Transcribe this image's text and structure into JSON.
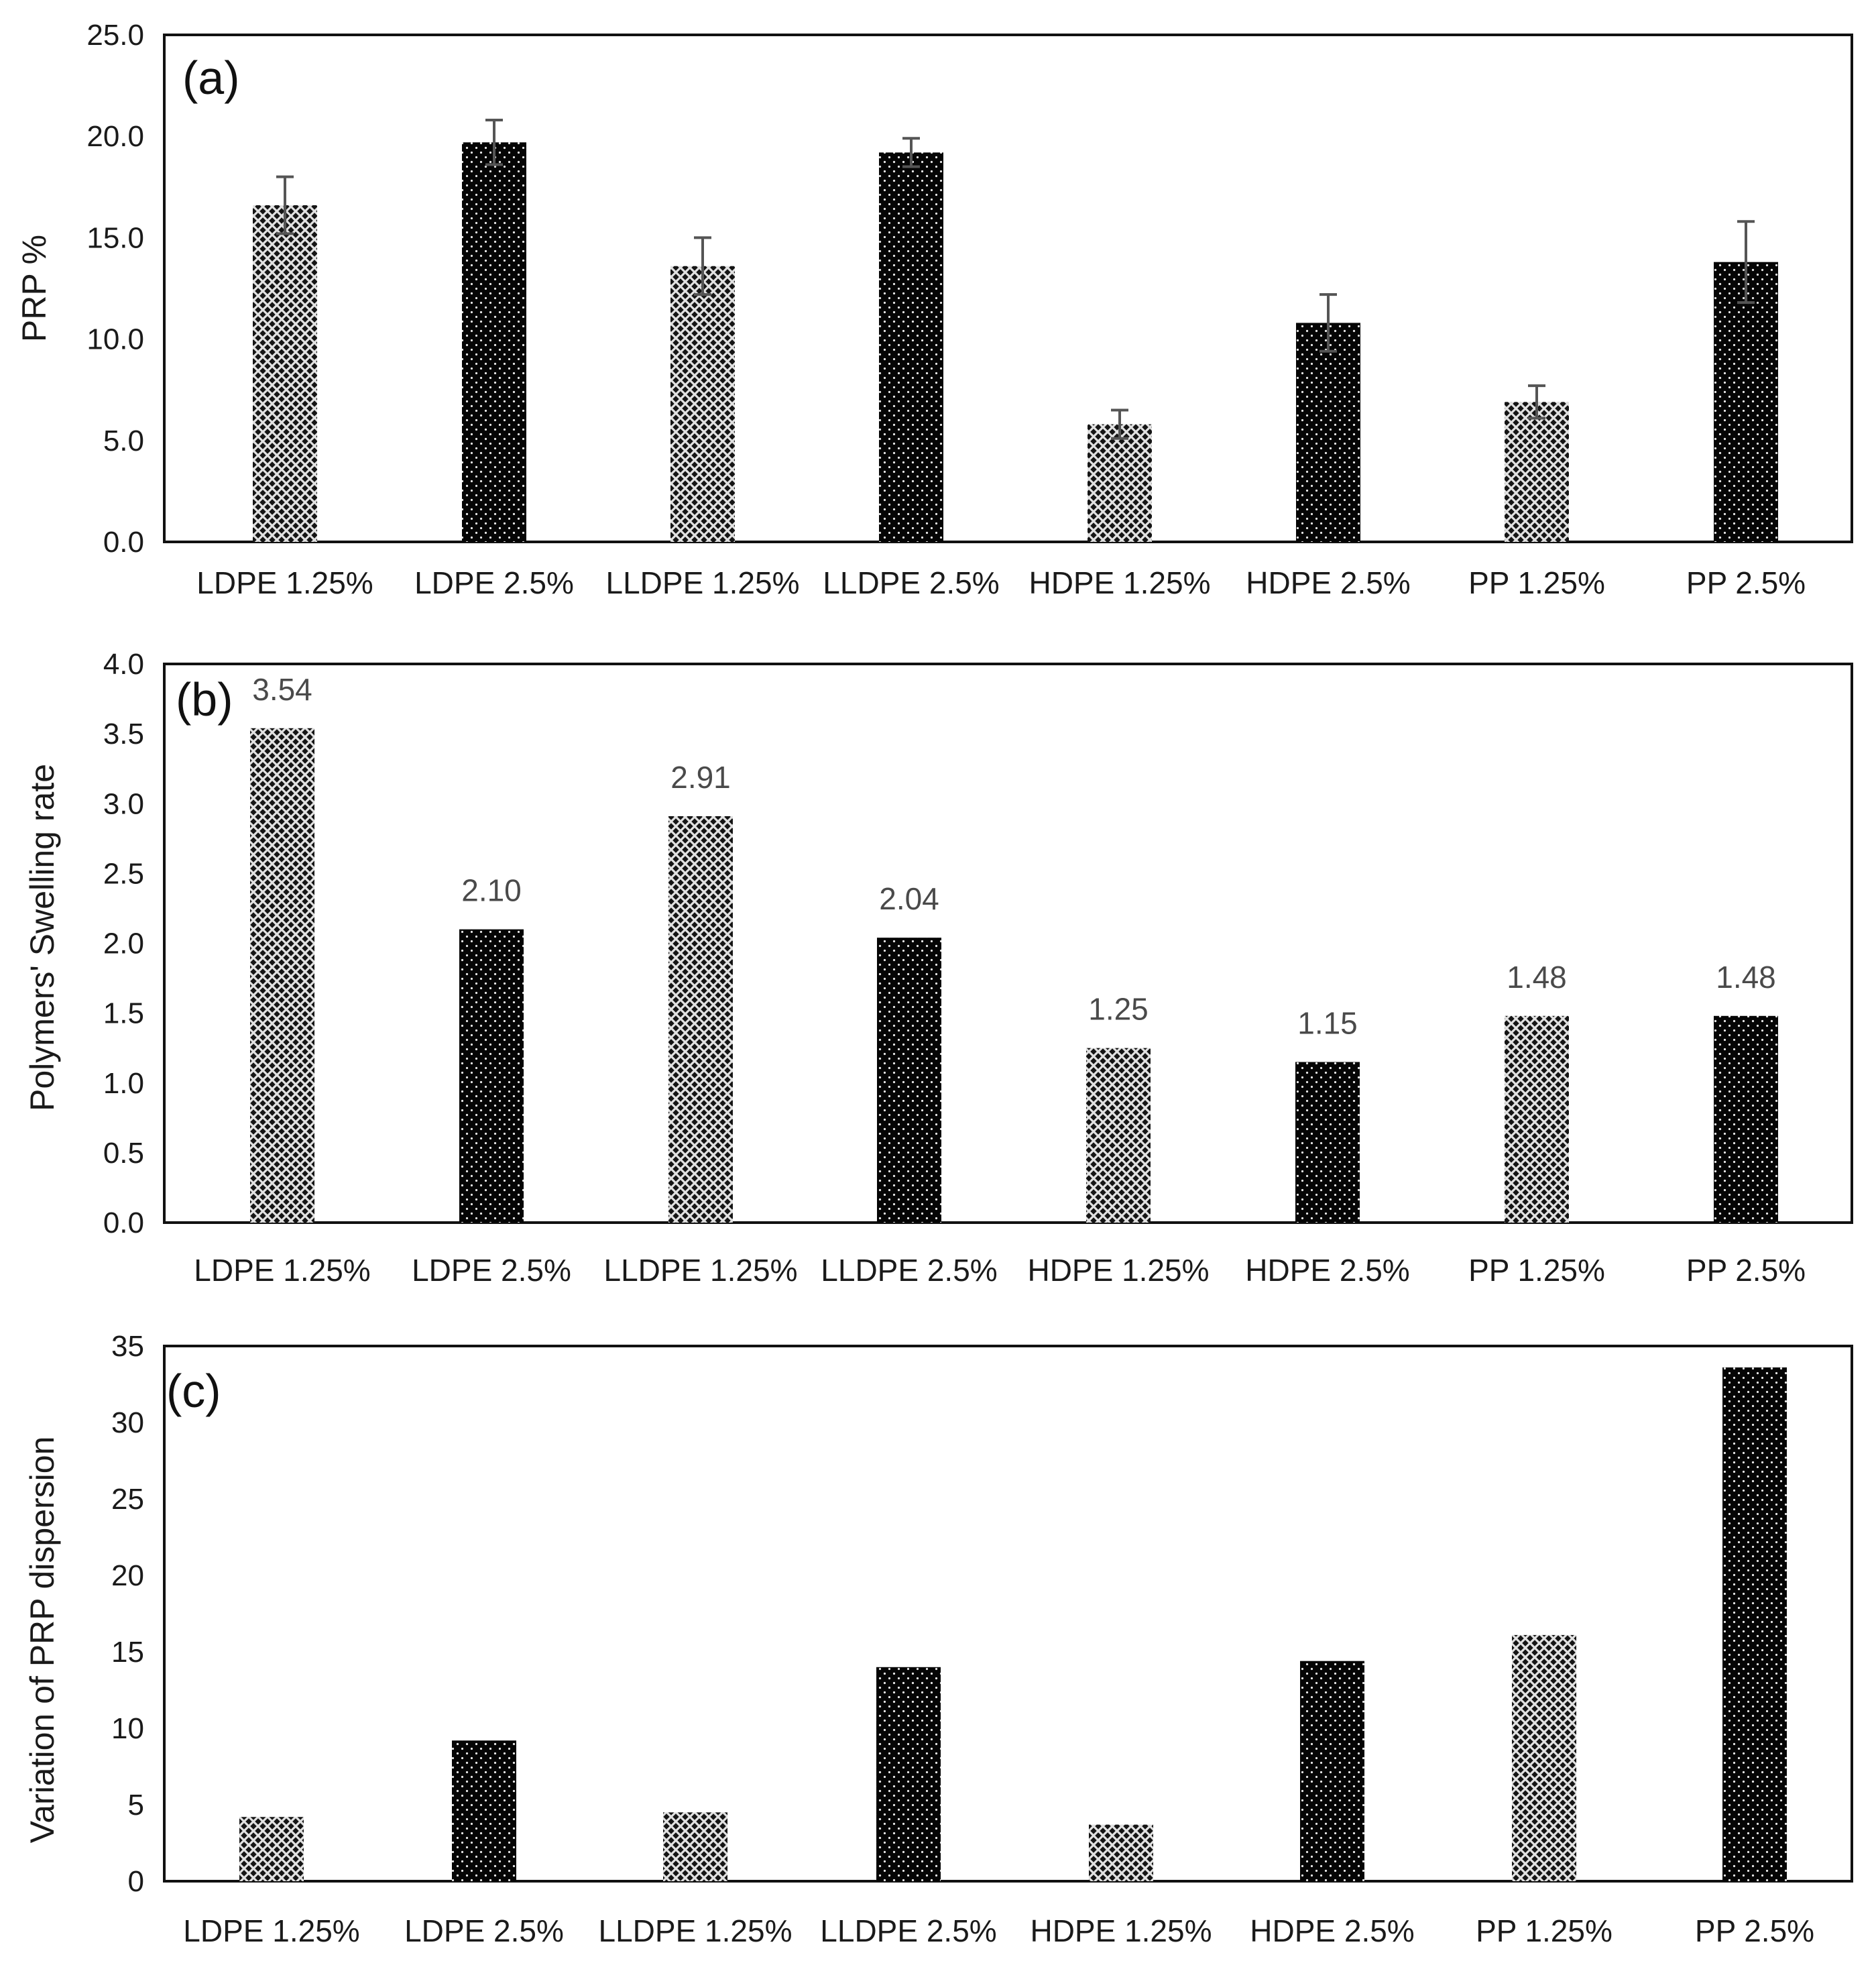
{
  "chart_data": [
    {
      "type": "bar",
      "panel": "(a)",
      "title": "",
      "xlabel": "",
      "ylabel": "PRP %",
      "ylim": [
        0,
        25
      ],
      "yticks": [
        "0.0",
        "5.0",
        "10.0",
        "15.0",
        "20.0",
        "25.0"
      ],
      "categories": [
        "LDPE 1.25%",
        "LDPE 2.5%",
        "LLDPE 1.25%",
        "LLDPE 2.5%",
        "HDPE 1.25%",
        "HDPE 2.5%",
        "PP 1.25%",
        "PP 2.5%"
      ],
      "values": [
        16.6,
        19.7,
        13.6,
        19.2,
        5.8,
        10.8,
        6.9,
        13.8
      ],
      "errors": [
        1.4,
        1.1,
        1.4,
        0.7,
        0.7,
        1.4,
        0.8,
        2.0
      ],
      "grid": false
    },
    {
      "type": "bar",
      "panel": "(b)",
      "title": "",
      "xlabel": "",
      "ylabel": "Polymers' Swelling rate",
      "ylim": [
        0,
        4
      ],
      "yticks": [
        "0.0",
        "0.5",
        "1.0",
        "1.5",
        "2.0",
        "2.5",
        "3.0",
        "3.5",
        "4.0"
      ],
      "categories": [
        "LDPE 1.25%",
        "LDPE 2.5%",
        "LLDPE 1.25%",
        "LLDPE 2.5%",
        "HDPE 1.25%",
        "HDPE 2.5%",
        "PP 1.25%",
        "PP 2.5%"
      ],
      "values": [
        3.54,
        2.1,
        2.91,
        2.04,
        1.25,
        1.15,
        1.48,
        1.48
      ],
      "data_labels": [
        "3.54",
        "2.10",
        "2.91",
        "2.04",
        "1.25",
        "1.15",
        "1.48",
        "1.48"
      ],
      "grid": false
    },
    {
      "type": "bar",
      "panel": "(c)",
      "title": "",
      "xlabel": "",
      "ylabel": "Variation of PRP dispersion",
      "ylim": [
        0,
        35
      ],
      "yticks": [
        "0",
        "5",
        "10",
        "15",
        "20",
        "25",
        "30",
        "35"
      ],
      "categories": [
        "LDPE 1.25%",
        "LDPE 2.5%",
        "LLDPE 1.25%",
        "LLDPE 2.5%",
        "HDPE 1.25%",
        "HDPE 2.5%",
        "PP 1.25%",
        "PP 2.5%"
      ],
      "values": [
        4.2,
        9.2,
        4.5,
        14.0,
        3.7,
        14.4,
        16.1,
        33.6
      ],
      "grid": false
    }
  ],
  "colors": {
    "frame": "#111111",
    "text": "#1a1a1a",
    "label": "#4a4a4a",
    "bar_dark": "#0a0a0a",
    "bar_hatch_bg": "#111111",
    "bar_hatch_fg": "#e6e6e6",
    "error_bar": "#555555"
  },
  "series_styles": [
    "crosshatch-grey",
    "dotted-black",
    "crosshatch-grey",
    "dotted-black",
    "crosshatch-grey",
    "dotted-black",
    "crosshatch-grey",
    "dotted-black"
  ]
}
